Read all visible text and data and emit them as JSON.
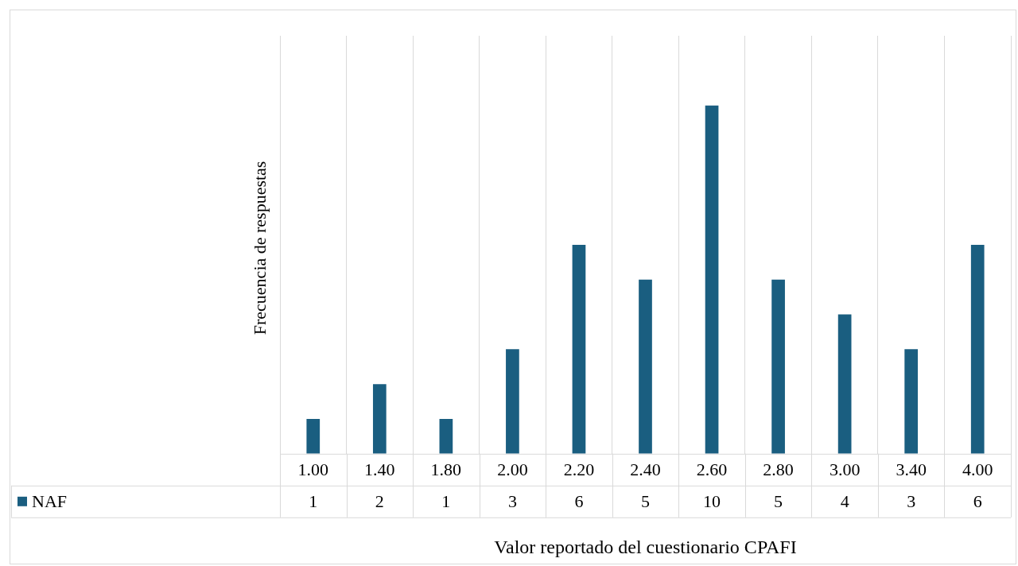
{
  "chart_data": {
    "type": "bar",
    "xlabel": "Valor reportado del cuestionario CPAFI",
    "ylabel": "Frecuencia de respuestas",
    "categories": [
      "1.00",
      "1.40",
      "1.80",
      "2.00",
      "2.20",
      "2.40",
      "2.60",
      "2.80",
      "3.00",
      "3.40",
      "4.00"
    ],
    "series": [
      {
        "name": "NAF",
        "color": "#1a5e80",
        "values": [
          1,
          2,
          1,
          3,
          6,
          5,
          10,
          5,
          4,
          3,
          6
        ]
      }
    ],
    "data_labels": true,
    "grid": "x",
    "legend": "bottom"
  }
}
